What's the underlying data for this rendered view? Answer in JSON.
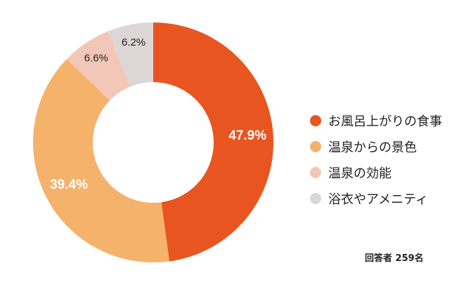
{
  "chart_data": {
    "type": "pie",
    "variant": "donut",
    "categories": [
      "お風呂上がりの食事",
      "温泉からの景色",
      "温泉の効能",
      "浴衣やアメニティ"
    ],
    "values": [
      47.9,
      39.4,
      6.6,
      6.2
    ],
    "labels": [
      "47.9%",
      "39.4%",
      "6.6%",
      "6.2%"
    ],
    "colors": [
      "#e85520",
      "#f5b26b",
      "#f2c7b8",
      "#dcd6d6"
    ],
    "legend_position": "right"
  },
  "footnote": "回答者 259名"
}
